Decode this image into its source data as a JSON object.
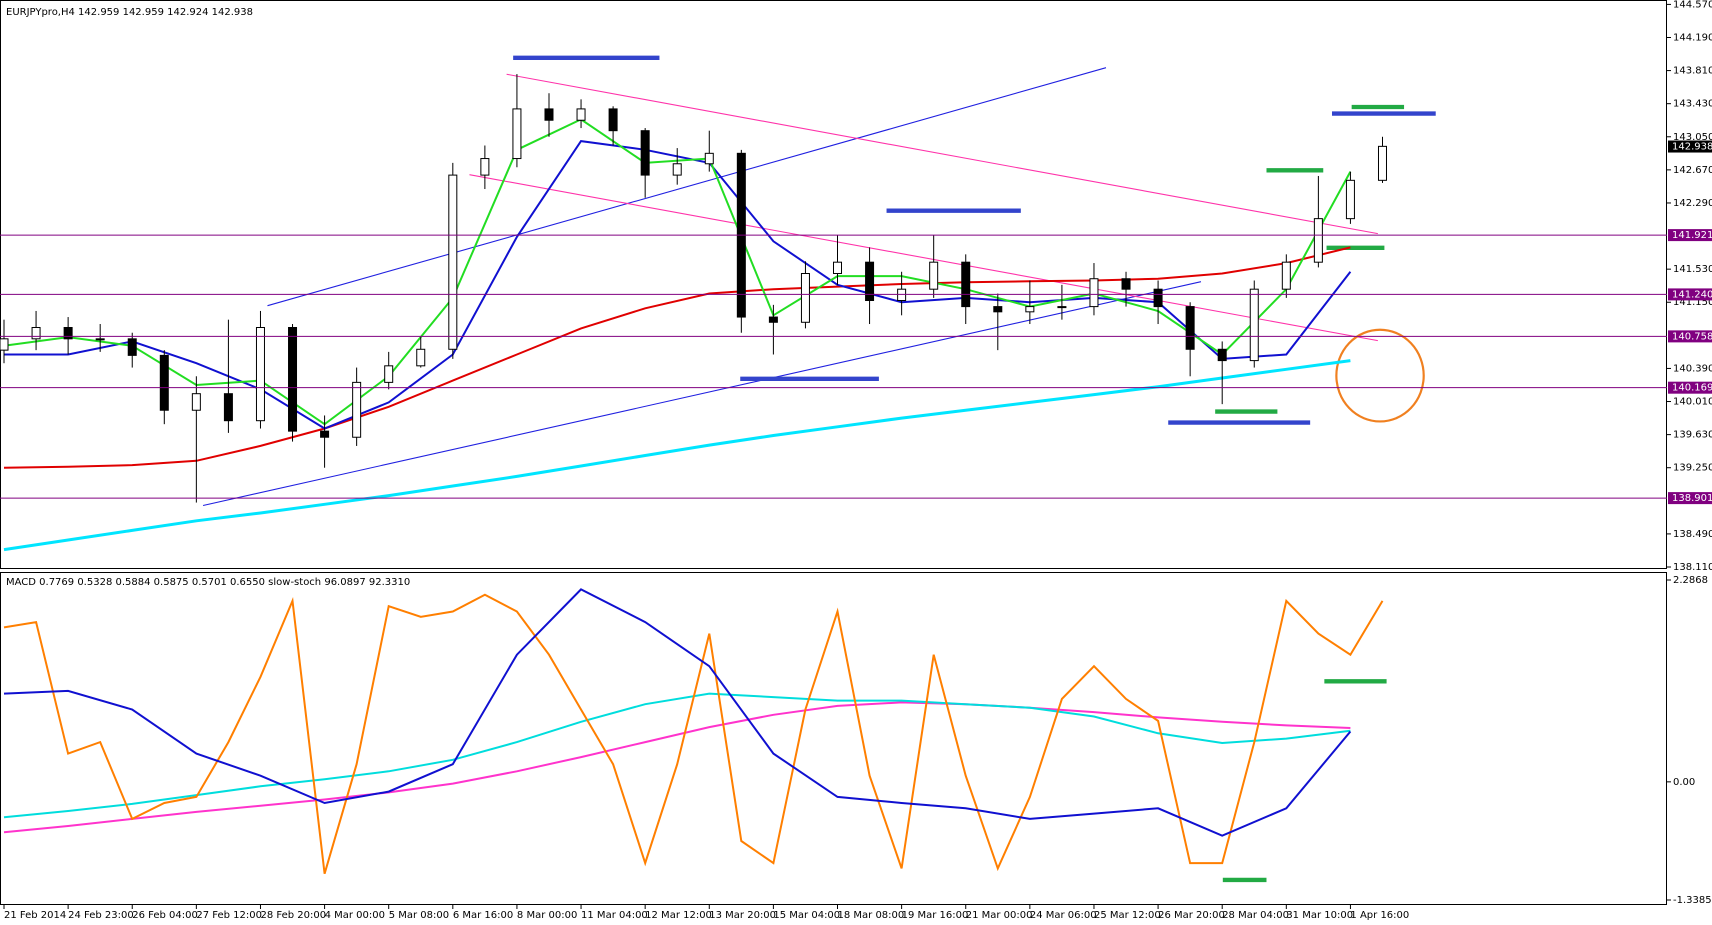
{
  "chart_data": [
    {
      "type": "candlestick",
      "title": "EURJPYpro,H4  142.959 142.959 142.924 142.938",
      "xlim": [
        -0.5,
        207.5
      ],
      "ylim": [
        138.11,
        144.57
      ],
      "yticks": [
        {
          "value": 144.57,
          "label": "144.570"
        },
        {
          "value": 144.19,
          "label": "144.190"
        },
        {
          "value": 143.81,
          "label": "143.810"
        },
        {
          "value": 143.43,
          "label": "143.430"
        },
        {
          "value": 143.05,
          "label": "143.050"
        },
        {
          "value": 142.67,
          "label": "142.670"
        },
        {
          "value": 142.29,
          "label": "142.290"
        },
        {
          "value": 141.53,
          "label": "141.530"
        },
        {
          "value": 141.15,
          "label": "141.150"
        },
        {
          "value": 140.39,
          "label": "140.390"
        },
        {
          "value": 140.01,
          "label": "140.010"
        },
        {
          "value": 139.63,
          "label": "139.630"
        },
        {
          "value": 139.25,
          "label": "139.250"
        },
        {
          "value": 138.49,
          "label": "138.490"
        },
        {
          "value": 138.11,
          "label": "138.110"
        }
      ],
      "levels": [
        {
          "value": 141.921,
          "label": "141.921"
        },
        {
          "value": 141.24,
          "label": "141.240"
        },
        {
          "value": 140.758,
          "label": "140.758"
        },
        {
          "value": 140.169,
          "label": "140.169"
        },
        {
          "value": 138.901,
          "label": "138.901"
        }
      ],
      "last": {
        "value": 142.938,
        "label": "142.938"
      },
      "x": [
        0,
        4,
        8,
        12,
        16,
        20,
        24,
        28,
        32,
        36,
        40,
        44,
        48,
        52,
        56,
        60,
        64,
        68,
        72,
        76,
        80,
        84,
        88,
        92,
        96,
        100,
        104,
        108,
        112,
        116,
        120,
        124,
        128,
        132,
        136,
        140,
        144,
        148,
        152,
        156,
        160,
        164,
        168,
        172
      ],
      "open": [
        140.6,
        140.73,
        140.86,
        140.73,
        140.73,
        140.54,
        139.91,
        140.1,
        139.79,
        140.86,
        139.67,
        139.6,
        140.23,
        140.42,
        140.61,
        142.61,
        142.8,
        143.37,
        143.24,
        143.37,
        143.12,
        142.61,
        142.74,
        142.86,
        140.98,
        140.92,
        141.48,
        141.61,
        141.17,
        141.3,
        141.61,
        141.1,
        141.04,
        141.1,
        141.1,
        141.42,
        141.3,
        141.1,
        140.61,
        140.48,
        141.3,
        141.61,
        142.11,
        142.55
      ],
      "high": [
        140.95,
        141.05,
        140.98,
        140.9,
        140.8,
        140.6,
        140.3,
        140.95,
        141.05,
        140.9,
        139.85,
        140.4,
        140.58,
        140.75,
        142.75,
        142.95,
        143.77,
        143.55,
        143.48,
        143.4,
        143.15,
        142.92,
        143.12,
        142.9,
        141.12,
        141.62,
        141.92,
        141.78,
        141.5,
        141.92,
        141.7,
        141.25,
        141.4,
        141.35,
        141.6,
        141.5,
        141.4,
        141.15,
        140.7,
        141.4,
        141.7,
        142.6,
        142.65,
        143.05
      ],
      "low": [
        140.45,
        140.6,
        140.55,
        140.58,
        140.4,
        139.75,
        138.85,
        139.65,
        139.7,
        139.55,
        139.25,
        139.5,
        140.15,
        140.4,
        140.5,
        142.45,
        142.7,
        143.05,
        143.15,
        142.95,
        142.35,
        142.5,
        142.65,
        140.8,
        140.55,
        140.85,
        141.35,
        140.9,
        141.0,
        141.2,
        140.9,
        140.6,
        140.9,
        140.95,
        141.0,
        141.1,
        140.9,
        140.3,
        139.98,
        140.4,
        141.2,
        141.55,
        142.05,
        142.52
      ],
      "close": [
        140.73,
        140.86,
        140.73,
        140.73,
        140.54,
        139.91,
        140.1,
        139.79,
        140.86,
        139.67,
        139.6,
        140.23,
        140.42,
        140.61,
        142.61,
        142.8,
        143.37,
        143.24,
        143.37,
        143.12,
        142.61,
        142.74,
        142.86,
        140.98,
        140.92,
        141.48,
        141.61,
        141.17,
        141.3,
        141.61,
        141.1,
        141.04,
        141.1,
        141.1,
        141.42,
        141.3,
        141.1,
        140.61,
        140.48,
        141.3,
        141.61,
        142.11,
        142.55,
        142.94
      ],
      "series": [
        {
          "color": "#00e5ff",
          "x": [
            0,
            8,
            16,
            24,
            32,
            40,
            48,
            56,
            64,
            72,
            80,
            88,
            96,
            104,
            112,
            120,
            128,
            136,
            144,
            152,
            160,
            168
          ],
          "values": [
            138.31,
            138.42,
            138.53,
            138.64,
            138.73,
            138.83,
            138.93,
            139.04,
            139.15,
            139.27,
            139.39,
            139.51,
            139.62,
            139.72,
            139.82,
            139.91,
            140.0,
            140.09,
            140.18,
            140.28,
            140.38,
            140.48
          ]
        },
        {
          "color": "#e00000",
          "x": [
            0,
            8,
            16,
            24,
            32,
            40,
            48,
            56,
            64,
            72,
            80,
            88,
            96,
            104,
            112,
            120,
            128,
            136,
            144,
            152,
            160,
            168
          ],
          "values": [
            139.25,
            139.26,
            139.28,
            139.33,
            139.5,
            139.7,
            139.95,
            140.25,
            140.55,
            140.85,
            141.08,
            141.25,
            141.3,
            141.33,
            141.36,
            141.38,
            141.39,
            141.4,
            141.42,
            141.48,
            141.6,
            141.78
          ]
        },
        {
          "color": "#1010d0",
          "x": [
            0,
            8,
            16,
            24,
            32,
            40,
            48,
            56,
            64,
            72,
            80,
            88,
            96,
            104,
            112,
            120,
            128,
            136,
            144,
            152,
            160,
            168
          ],
          "values": [
            140.55,
            140.55,
            140.7,
            140.45,
            140.15,
            139.7,
            140.0,
            140.55,
            141.9,
            143.0,
            142.9,
            142.75,
            141.85,
            141.35,
            141.15,
            141.2,
            141.15,
            141.2,
            141.15,
            140.5,
            140.55,
            141.5
          ]
        },
        {
          "color": "#22dd22",
          "x": [
            0,
            8,
            16,
            24,
            32,
            40,
            48,
            56,
            64,
            72,
            80,
            88,
            96,
            104,
            112,
            120,
            128,
            136,
            144,
            152,
            160,
            168
          ],
          "values": [
            140.65,
            140.75,
            140.65,
            140.2,
            140.25,
            139.75,
            140.3,
            141.2,
            142.9,
            143.25,
            142.75,
            142.8,
            141.0,
            141.45,
            141.45,
            141.3,
            141.1,
            141.25,
            141.05,
            140.55,
            141.3,
            142.65
          ]
        }
      ]
    },
    {
      "type": "line",
      "title": "MACD 0.7769 0.5328 0.5884 0.5875 0.5701 0.6550  slow-stoch 96.0897 92.3310",
      "xlim": [
        -0.5,
        207.5
      ],
      "ylim": [
        -1.3385,
        2.2868
      ],
      "yticks": [
        2.2868,
        {
          "value": 0,
          "label": "0.00"
        },
        -1.3385
      ],
      "xticks": [
        {
          "value": 0,
          "label": "21 Feb 2014"
        },
        {
          "value": 8,
          "label": "24 Feb 23:00"
        },
        {
          "value": 16,
          "label": "26 Feb 04:00"
        },
        {
          "value": 24,
          "label": "27 Feb 12:00"
        },
        {
          "value": 32,
          "label": "28 Feb 20:00"
        },
        {
          "value": 40,
          "label": "4 Mar 00:00"
        },
        {
          "value": 48,
          "label": "5 Mar 08:00"
        },
        {
          "value": 56,
          "label": "6 Mar 16:00"
        },
        {
          "value": 64,
          "label": "8 Mar 00:00"
        },
        {
          "value": 72,
          "label": "11 Mar 04:00"
        },
        {
          "value": 80,
          "label": "12 Mar 12:00"
        },
        {
          "value": 88,
          "label": "13 Mar 20:00"
        },
        {
          "value": 96,
          "label": "15 Mar 04:00"
        },
        {
          "value": 104,
          "label": "18 Mar 08:00"
        },
        {
          "value": 112,
          "label": "19 Mar 16:00"
        },
        {
          "value": 120,
          "label": "21 Mar 00:00"
        },
        {
          "value": 128,
          "label": "24 Mar 06:00"
        },
        {
          "value": 136,
          "label": "25 Mar 12:00"
        },
        {
          "value": 144,
          "label": "26 Mar 20:00"
        },
        {
          "value": 152,
          "label": "28 Mar 04:00"
        },
        {
          "value": 160,
          "label": "31 Mar 10:00"
        },
        {
          "value": 168,
          "label": "1 Apr 16:00"
        }
      ],
      "series": [
        {
          "color": "#ff33cc",
          "x": [
            0,
            8,
            16,
            24,
            32,
            40,
            48,
            56,
            64,
            72,
            80,
            88,
            96,
            104,
            112,
            120,
            128,
            136,
            144,
            152,
            160,
            168
          ],
          "values": [
            -0.57,
            -0.5,
            -0.42,
            -0.34,
            -0.27,
            -0.2,
            -0.12,
            -0.02,
            0.12,
            0.28,
            0.45,
            0.62,
            0.76,
            0.86,
            0.9,
            0.88,
            0.84,
            0.79,
            0.73,
            0.68,
            0.64,
            0.61
          ]
        },
        {
          "color": "#00dddd",
          "x": [
            0,
            8,
            16,
            24,
            32,
            40,
            48,
            56,
            64,
            72,
            80,
            88,
            96,
            104,
            112,
            120,
            128,
            136,
            144,
            152,
            160,
            168
          ],
          "values": [
            -0.4,
            -0.33,
            -0.25,
            -0.15,
            -0.05,
            0.03,
            0.12,
            0.25,
            0.45,
            0.68,
            0.88,
            1.0,
            0.96,
            0.92,
            0.92,
            0.88,
            0.84,
            0.74,
            0.55,
            0.44,
            0.49,
            0.58
          ]
        },
        {
          "color": "#ff7f00",
          "x": [
            0,
            4,
            8,
            12,
            16,
            20,
            24,
            28,
            32,
            36,
            40,
            44,
            48,
            52,
            56,
            60,
            64,
            68,
            72,
            76,
            80,
            84,
            88,
            92,
            96,
            100,
            104,
            108,
            112,
            116,
            120,
            124,
            128,
            132,
            136,
            140,
            144,
            148,
            152,
            156,
            160,
            164,
            168,
            172
          ],
          "values": [
            1.75,
            1.81,
            0.32,
            0.45,
            -0.42,
            -0.24,
            -0.17,
            0.45,
            1.19,
            2.05,
            -1.04,
            0.2,
            1.99,
            1.87,
            1.93,
            2.12,
            1.93,
            1.44,
            0.82,
            0.2,
            -0.92,
            0.2,
            1.68,
            -0.67,
            -0.92,
            0.82,
            1.93,
            0.07,
            -0.98,
            1.44,
            0.07,
            -0.98,
            -0.17,
            0.94,
            1.31,
            0.94,
            0.69,
            -0.92,
            -0.92,
            0.45,
            2.05,
            1.68,
            1.44,
            2.05
          ]
        },
        {
          "color": "#1010d0",
          "x": [
            0,
            8,
            16,
            24,
            32,
            40,
            48,
            56,
            64,
            72,
            80,
            88,
            96,
            104,
            112,
            120,
            128,
            136,
            144,
            152,
            160,
            168
          ],
          "values": [
            1.0,
            1.03,
            0.82,
            0.32,
            0.07,
            -0.24,
            -0.11,
            0.2,
            1.44,
            2.18,
            1.81,
            1.31,
            0.32,
            -0.17,
            -0.24,
            -0.3,
            -0.42,
            -0.36,
            -0.3,
            -0.61,
            -0.3,
            0.57
          ]
        }
      ]
    }
  ]
}
